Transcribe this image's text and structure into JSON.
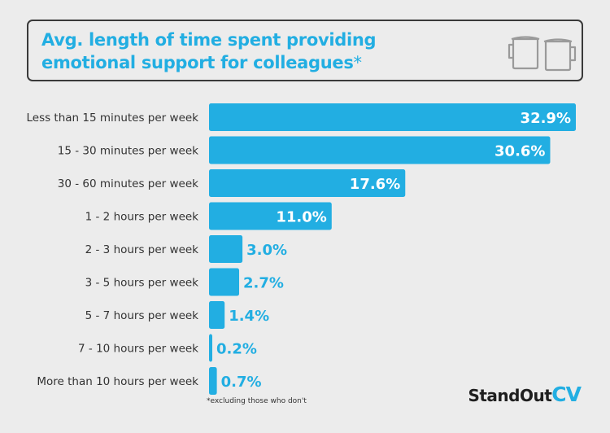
{
  "header": {
    "title_line1": "Avg. length of time spent providing",
    "title_line2": "emotional support for colleagues",
    "title_asterisk": "*"
  },
  "chart_data": {
    "type": "bar",
    "orientation": "horizontal",
    "title": "Avg. length of time spent providing emotional support for colleagues*",
    "categories": [
      "Less than 15 minutes per week",
      "15 - 30 minutes per week",
      "30 - 60 minutes per week",
      "1 - 2 hours per week",
      "2 - 3 hours per week",
      "3 - 5 hours per week",
      "5 - 7 hours per week",
      "7 - 10 hours per week",
      "More than 10 hours per week"
    ],
    "values": [
      32.9,
      30.6,
      17.6,
      11.0,
      3.0,
      2.7,
      1.4,
      0.2,
      0.7
    ],
    "value_labels": [
      "32.9%",
      "30.6%",
      "17.6%",
      "11.0%",
      "3.0%",
      "2.7%",
      "1.4%",
      "0.2%",
      "0.7%"
    ],
    "unit": "%",
    "xlim": [
      0,
      35
    ],
    "bar_color": "#22aee2",
    "grid": false,
    "legend": "none"
  },
  "footnote": "*excluding those who don't",
  "logo": {
    "part1": "StandOut",
    "part2": "CV"
  },
  "colors": {
    "accent": "#22aee2",
    "background": "#ececec",
    "text": "#333333",
    "inside_label": "#ffffff"
  },
  "icons": [
    "mug-icon",
    "mug-icon"
  ]
}
